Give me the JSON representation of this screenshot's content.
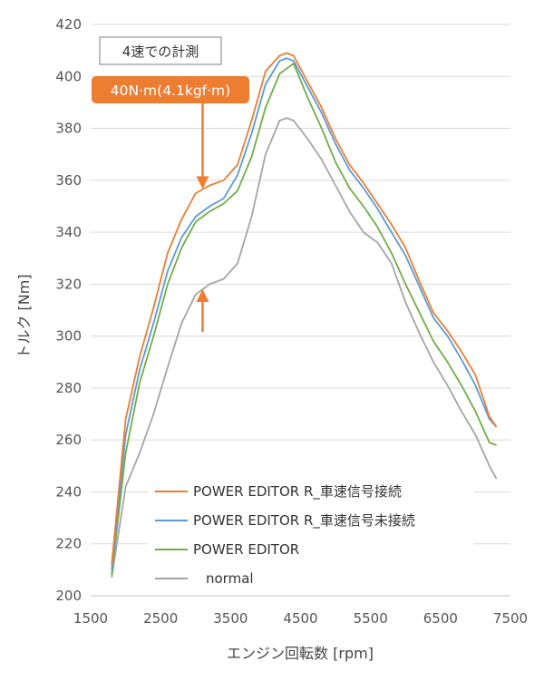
{
  "chart_data": {
    "type": "line",
    "xlabel": "エンジン回転数 [rpm]",
    "ylabel": "トルク [Nm]",
    "xlim": [
      1500,
      7500
    ],
    "ylim": [
      200,
      420
    ],
    "xticks": [
      "1500",
      "2500",
      "3500",
      "4500",
      "5500",
      "6500",
      "7500"
    ],
    "yticks": [
      "200",
      "220",
      "240",
      "260",
      "280",
      "300",
      "320",
      "340",
      "360",
      "380",
      "400",
      "420"
    ],
    "grid": "horizontal",
    "legend_position": "bottom-left",
    "annotations": {
      "note": "4速での計測",
      "callout": "40N·m(4.1kgf·m)",
      "arrow": {
        "x": 3100,
        "y_top": 357,
        "y_bottom": 317
      }
    },
    "series": [
      {
        "name": "POWER EDITOR R_車速信号接続",
        "color": "#ED7D31",
        "x": [
          1800,
          2000,
          2200,
          2400,
          2600,
          2800,
          3000,
          3200,
          3400,
          3600,
          3800,
          4000,
          4200,
          4300,
          4400,
          4600,
          4800,
          5000,
          5200,
          5400,
          5600,
          5800,
          6000,
          6200,
          6400,
          6600,
          6800,
          7000,
          7200,
          7300
        ],
        "values": [
          212,
          268,
          292,
          311,
          332,
          345,
          355,
          358,
          360,
          366,
          383,
          402,
          408,
          409,
          408,
          398,
          388,
          376,
          366,
          359,
          351,
          343,
          334,
          321,
          309,
          302,
          294,
          285,
          269,
          265
        ]
      },
      {
        "name": "POWER EDITOR R_車速信号未接続",
        "color": "#5B9BD5",
        "x": [
          1800,
          2000,
          2200,
          2400,
          2600,
          2800,
          3000,
          3200,
          3400,
          3600,
          3800,
          4000,
          4200,
          4300,
          4400,
          4600,
          4800,
          5000,
          5200,
          5400,
          5600,
          5800,
          6000,
          6200,
          6400,
          6600,
          6800,
          7000,
          7200,
          7300
        ],
        "values": [
          210,
          262,
          287,
          305,
          325,
          338,
          346,
          350,
          353,
          362,
          378,
          397,
          406,
          407,
          406,
          396,
          386,
          374,
          364,
          357,
          349,
          340,
          331,
          319,
          307,
          300,
          291,
          281,
          268,
          265
        ]
      },
      {
        "name": "POWER EDITOR",
        "color": "#70AD47",
        "x": [
          1800,
          2000,
          2200,
          2400,
          2600,
          2800,
          3000,
          3200,
          3400,
          3600,
          3800,
          4000,
          4200,
          4300,
          4400,
          4600,
          4800,
          5000,
          5200,
          5400,
          5600,
          5800,
          6000,
          6200,
          6400,
          6600,
          6800,
          7000,
          7200,
          7300
        ],
        "values": [
          208,
          255,
          282,
          300,
          320,
          334,
          344,
          348,
          351,
          356,
          369,
          388,
          401,
          403,
          405,
          392,
          380,
          367,
          357,
          350,
          342,
          332,
          320,
          309,
          298,
          290,
          281,
          271,
          259,
          258
        ]
      },
      {
        "name": "normal",
        "color": "#A5A5A5",
        "x": [
          1800,
          2000,
          2200,
          2400,
          2600,
          2800,
          3000,
          3200,
          3400,
          3600,
          3800,
          4000,
          4200,
          4300,
          4400,
          4600,
          4800,
          5000,
          5200,
          5400,
          5600,
          5800,
          6000,
          6200,
          6400,
          6600,
          6800,
          7000,
          7200,
          7300
        ],
        "values": [
          207,
          242,
          255,
          270,
          288,
          305,
          316,
          320,
          322,
          328,
          346,
          370,
          383,
          384,
          383,
          376,
          368,
          358,
          348,
          340,
          336,
          328,
          313,
          301,
          290,
          281,
          271,
          262,
          250,
          245
        ]
      }
    ]
  }
}
